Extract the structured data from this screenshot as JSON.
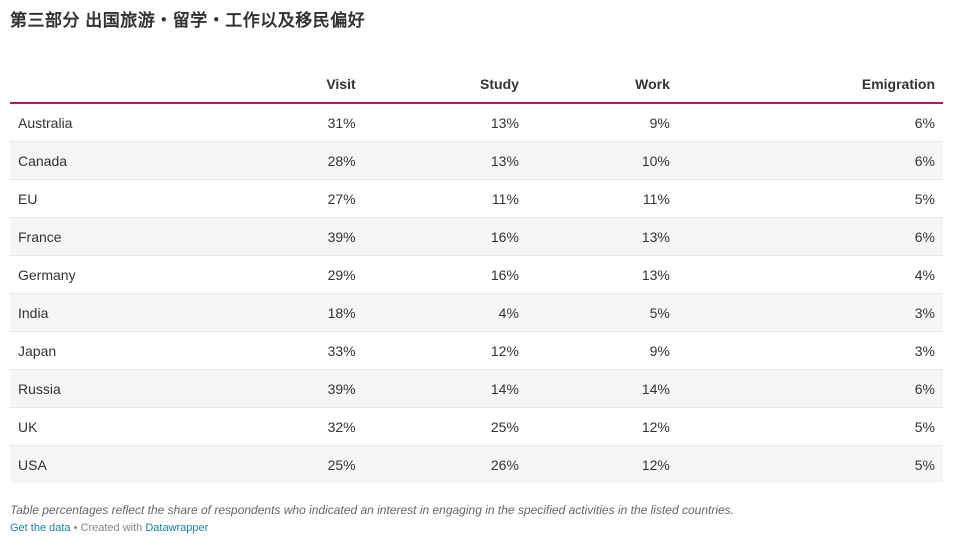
{
  "title": "第三部分 出国旅游・留学・工作以及移民偏好",
  "chart_data": {
    "type": "table",
    "columns": [
      "",
      "Visit",
      "Study",
      "Work",
      "Emigration"
    ],
    "rows": [
      {
        "country": "Australia",
        "visit": "31%",
        "study": "13%",
        "work": "9%",
        "emigration": "6%"
      },
      {
        "country": "Canada",
        "visit": "28%",
        "study": "13%",
        "work": "10%",
        "emigration": "6%"
      },
      {
        "country": "EU",
        "visit": "27%",
        "study": "11%",
        "work": "11%",
        "emigration": "5%"
      },
      {
        "country": "France",
        "visit": "39%",
        "study": "16%",
        "work": "13%",
        "emigration": "6%"
      },
      {
        "country": "Germany",
        "visit": "29%",
        "study": "16%",
        "work": "13%",
        "emigration": "4%"
      },
      {
        "country": "India",
        "visit": "18%",
        "study": "4%",
        "work": "5%",
        "emigration": "3%"
      },
      {
        "country": "Japan",
        "visit": "33%",
        "study": "12%",
        "work": "9%",
        "emigration": "3%"
      },
      {
        "country": "Russia",
        "visit": "39%",
        "study": "14%",
        "work": "14%",
        "emigration": "6%"
      },
      {
        "country": "UK",
        "visit": "32%",
        "study": "25%",
        "work": "12%",
        "emigration": "5%"
      },
      {
        "country": "USA",
        "visit": "25%",
        "study": "26%",
        "work": "12%",
        "emigration": "5%"
      }
    ]
  },
  "notes": "Table percentages reflect the share of respondents who indicated an interest in engaging in the specified activities in the listed countries.",
  "footer": {
    "get_data": "Get the data",
    "separator": " • Created with ",
    "tool": "Datawrapper"
  },
  "colors": {
    "header_rule": "#b3176b",
    "stripe": "#f6f6f6",
    "link": "#1d81a2"
  }
}
